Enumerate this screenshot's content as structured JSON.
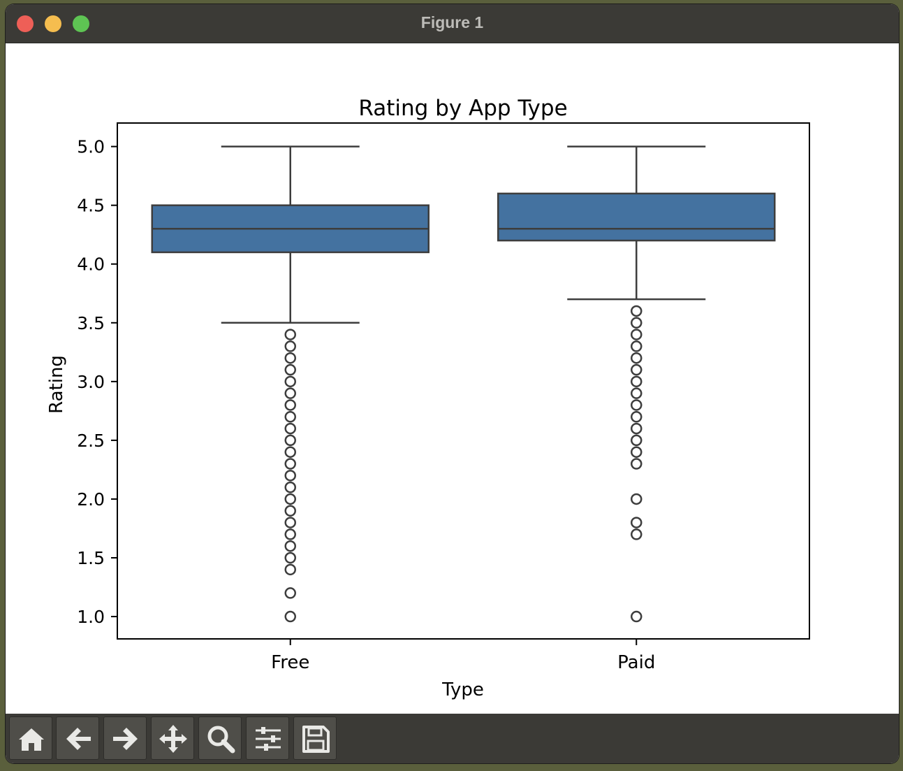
{
  "window": {
    "title": "Figure 1"
  },
  "toolbar": {
    "buttons": [
      {
        "icon": "home-icon",
        "name": "home-button"
      },
      {
        "icon": "back-arrow-icon",
        "name": "back-button"
      },
      {
        "icon": "forward-arrow-icon",
        "name": "forward-button"
      },
      {
        "icon": "pan-move-icon",
        "name": "pan-button"
      },
      {
        "icon": "zoom-magnifier-icon",
        "name": "zoom-button"
      },
      {
        "icon": "configure-sliders-icon",
        "name": "configure-subplots-button"
      },
      {
        "icon": "save-disk-icon",
        "name": "save-button"
      }
    ]
  },
  "chart_data": {
    "type": "box",
    "title": "Rating by App Type",
    "xlabel": "Type",
    "ylabel": "Rating",
    "categories": [
      "Free",
      "Paid"
    ],
    "ylim": [
      0.81,
      5.2
    ],
    "yticks": [
      "1.0",
      "1.5",
      "2.0",
      "2.5",
      "3.0",
      "3.5",
      "4.0",
      "4.5",
      "5.0"
    ],
    "grid": false,
    "legend": "none",
    "box_color": "#4472a0",
    "line_color": "#3d3d3d",
    "boxes": [
      {
        "category": "Free",
        "whisker_low": 3.5,
        "q1": 4.1,
        "median": 4.3,
        "q3": 4.5,
        "whisker_high": 5.0,
        "outliers": [
          3.4,
          3.3,
          3.2,
          3.1,
          3.0,
          2.9,
          2.8,
          2.7,
          2.6,
          2.5,
          2.4,
          2.3,
          2.2,
          2.1,
          2.0,
          1.9,
          1.8,
          1.7,
          1.6,
          1.5,
          1.4,
          1.2,
          1.0
        ]
      },
      {
        "category": "Paid",
        "whisker_low": 3.7,
        "q1": 4.2,
        "median": 4.3,
        "q3": 4.6,
        "whisker_high": 5.0,
        "outliers": [
          3.6,
          3.5,
          3.4,
          3.3,
          3.2,
          3.1,
          3.0,
          2.9,
          2.8,
          2.7,
          2.6,
          2.5,
          2.4,
          2.3,
          2.0,
          1.8,
          1.7,
          1.0
        ]
      }
    ]
  }
}
